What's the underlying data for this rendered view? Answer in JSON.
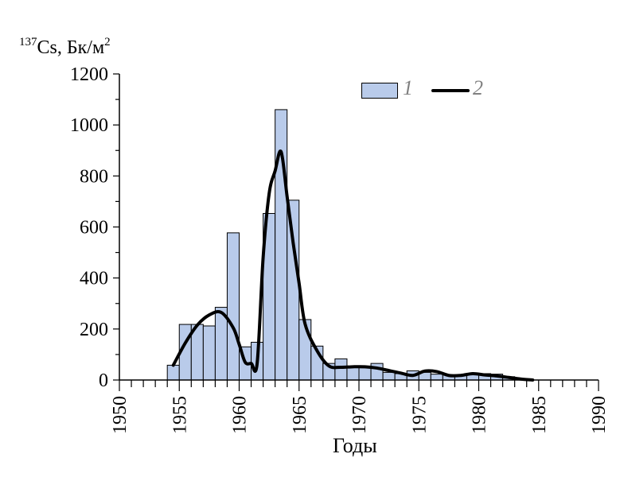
{
  "chart_data": {
    "type": "bar",
    "ylabel": {
      "isotope_mass": "137",
      "isotope": "Cs, Бк/м",
      "unit_power": "2"
    },
    "xlabel": "Годы",
    "xlim": [
      1950,
      1990
    ],
    "ylim": [
      0,
      1200
    ],
    "x_ticks": [
      "1950",
      "1955",
      "1960",
      "1965",
      "1970",
      "1975",
      "1980",
      "1985",
      "1990"
    ],
    "y_ticks": [
      "0",
      "200",
      "400",
      "600",
      "800",
      "1000",
      "1200"
    ],
    "legend": {
      "placement": "top-right",
      "bar_label": "1",
      "line_label": "2"
    },
    "colors": {
      "bar_fill": "#b9cbea",
      "bar_edge": "#000000",
      "line": "#000000"
    },
    "bars": {
      "x": [
        1954,
        1955,
        1956,
        1957,
        1958,
        1959,
        1960,
        1961,
        1962,
        1963,
        1964,
        1965,
        1966,
        1967,
        1968,
        1969,
        1970,
        1971,
        1972,
        1973,
        1974,
        1975,
        1976,
        1977,
        1978,
        1979,
        1980,
        1981,
        1982,
        1983
      ],
      "values": [
        58,
        218,
        218,
        212,
        285,
        577,
        130,
        148,
        653,
        1060,
        705,
        237,
        133,
        65,
        83,
        50,
        48,
        65,
        30,
        25,
        36,
        30,
        23,
        20,
        20,
        23,
        25,
        23,
        13,
        4
      ]
    },
    "line": {
      "x": [
        1954,
        1955,
        1956,
        1957,
        1958,
        1959,
        1959.5,
        1960,
        1960.5,
        1961,
        1961.5,
        1962,
        1962.5,
        1963,
        1963.5,
        1964,
        1964.5,
        1965,
        1966,
        1967,
        1968,
        1969,
        1970,
        1971,
        1972,
        1973,
        1974,
        1975,
        1976,
        1977,
        1978,
        1979,
        1980,
        1981,
        1982,
        1983,
        1984
      ],
      "values": [
        58,
        145,
        215,
        255,
        265,
        205,
        140,
        70,
        65,
        65,
        480,
        730,
        820,
        895,
        720,
        540,
        380,
        220,
        115,
        55,
        50,
        52,
        52,
        47,
        37,
        27,
        18,
        35,
        33,
        18,
        18,
        25,
        20,
        16,
        10,
        4,
        0
      ]
    }
  }
}
